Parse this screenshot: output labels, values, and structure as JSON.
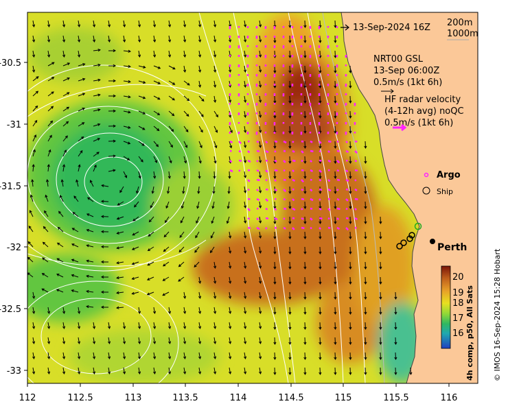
{
  "map": {
    "lon_ticks": [
      "112",
      "112.5",
      "113",
      "113.5",
      "114",
      "114.5",
      "115",
      "115.5",
      "116"
    ],
    "lat_ticks": [
      "-30.5",
      "-31",
      "-31.5",
      "-32",
      "-32.5",
      "-33"
    ],
    "lon_range": [
      112,
      116.3
    ],
    "lat_range": [
      -30.05,
      -33.1
    ],
    "date_label": "13-Sep-2024 16Z",
    "depth_labels": [
      "200m",
      "1000m"
    ],
    "current_source": {
      "line1": "NRT00 GSL",
      "line2": "13-Sep 06:00Z",
      "line3": "0.5m/s (1kt 6h)"
    },
    "radar": {
      "line1": "HF radar velocity",
      "line2": "(4-12h avg) noQC",
      "line3": "0.5m/s (1kt 6h)"
    },
    "legend": {
      "argo": "Argo",
      "ship": "Ship"
    },
    "city": "Perth",
    "colorbar": {
      "ticks": [
        "20",
        "19",
        "18",
        "17",
        "16"
      ],
      "label": "4h comp, p50, All Sats",
      "range": [
        15.5,
        20.5
      ]
    },
    "credit": "© IMOS 16-Sep-2024 15:28 Hobart",
    "colors": {
      "land": "#fbc898",
      "cold": "#2db85a",
      "warm": "#b8561a",
      "hot": "#8a1c0c",
      "radar_vector": "#ff22ff",
      "current_vector": "#000000"
    }
  }
}
